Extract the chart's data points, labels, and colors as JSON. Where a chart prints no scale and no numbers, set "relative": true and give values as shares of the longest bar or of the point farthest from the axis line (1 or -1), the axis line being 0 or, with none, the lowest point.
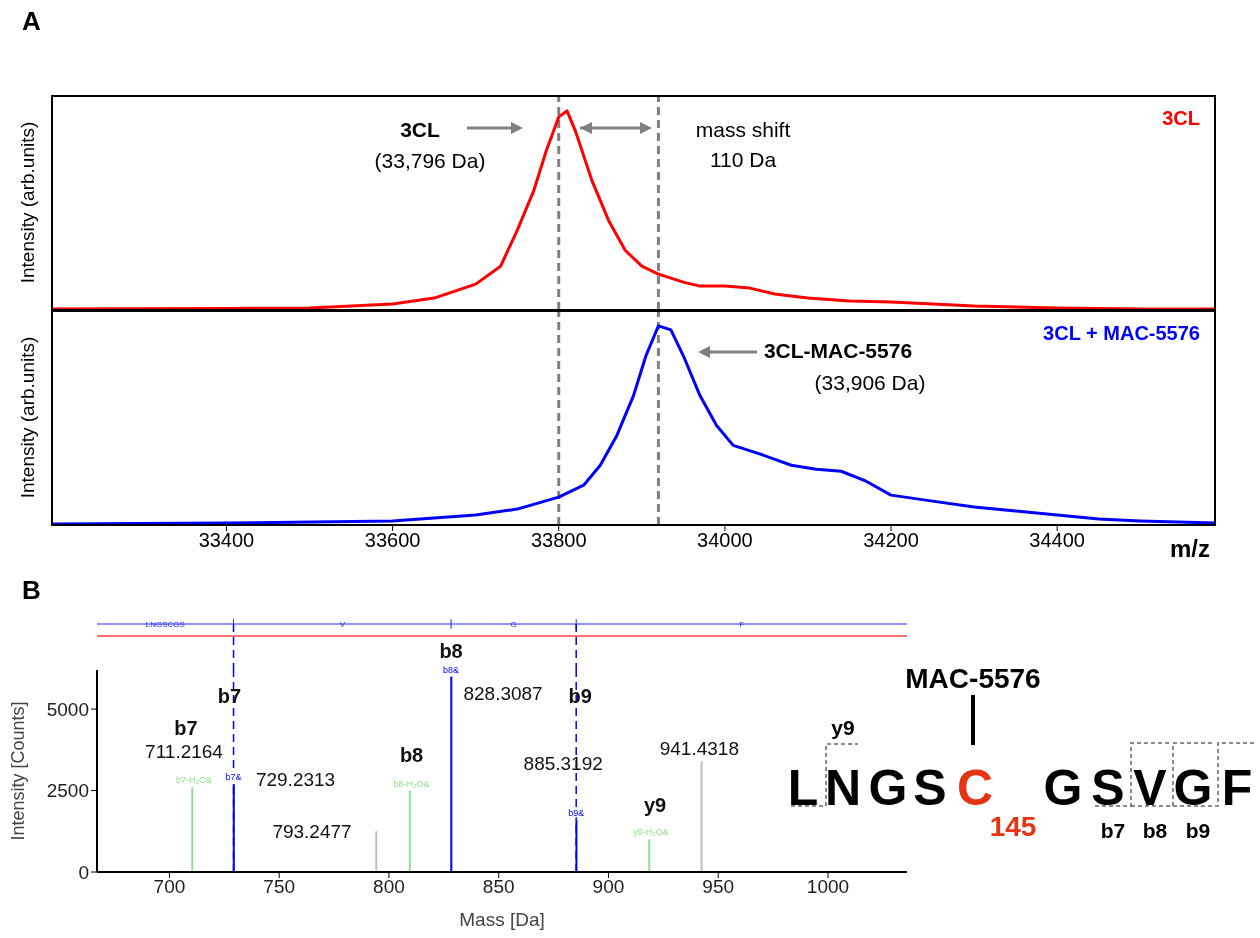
{
  "chart_data": [
    {
      "type": "line",
      "title": "A",
      "ylabel": "Intensity (arb.units)",
      "relative": true,
      "xlim": [
        33190,
        34590
      ],
      "tick_labels": false,
      "legend": "top right",
      "series": [
        {
          "name": "3CL",
          "color": "#ff0000",
          "x": [
            33190,
            33400,
            33500,
            33600,
            33650,
            33700,
            33730,
            33750,
            33770,
            33785,
            33800,
            33810,
            33820,
            33840,
            33860,
            33880,
            33900,
            33920,
            33950,
            33970,
            34000,
            34030,
            34060,
            34100,
            34150,
            34200,
            34250,
            34300,
            34400,
            34500,
            34590
          ],
          "values": [
            0.005,
            0.008,
            0.01,
            0.03,
            0.06,
            0.13,
            0.22,
            0.4,
            0.6,
            0.8,
            0.97,
            1,
            0.9,
            0.65,
            0.45,
            0.3,
            0.22,
            0.18,
            0.14,
            0.12,
            0.12,
            0.11,
            0.08,
            0.06,
            0.045,
            0.04,
            0.03,
            0.02,
            0.01,
            0.005,
            0.005
          ]
        }
      ],
      "ref_lines": [
        {
          "axis": "x",
          "value": 33800,
          "color": "#808080",
          "line_style": "dashed"
        },
        {
          "axis": "x",
          "value": 33920,
          "color": "#808080",
          "line_style": "dashed"
        }
      ],
      "annotations": [
        "3CL",
        "(33,796 Da)",
        "mass shift",
        "110 Da"
      ]
    },
    {
      "type": "line",
      "ylabel": "Intensity (arb.units)",
      "xlabel": "m/z",
      "relative": true,
      "xlim": [
        33190,
        34590
      ],
      "xticks": [
        33400,
        33600,
        33800,
        34000,
        34200,
        34400
      ],
      "legend": "top right",
      "series": [
        {
          "name": "3CL + MAC-5576",
          "color": "#0000ff",
          "x": [
            33190,
            33400,
            33600,
            33700,
            33750,
            33800,
            33830,
            33850,
            33870,
            33890,
            33905,
            33920,
            33935,
            33950,
            33970,
            33990,
            34010,
            34040,
            34080,
            34110,
            34140,
            34170,
            34200,
            34250,
            34300,
            34350,
            34400,
            34450,
            34500,
            34590
          ],
          "values": [
            0.005,
            0.01,
            0.02,
            0.05,
            0.08,
            0.14,
            0.2,
            0.3,
            0.45,
            0.65,
            0.85,
            1,
            0.98,
            0.85,
            0.65,
            0.5,
            0.4,
            0.36,
            0.3,
            0.28,
            0.27,
            0.22,
            0.15,
            0.12,
            0.09,
            0.07,
            0.05,
            0.03,
            0.02,
            0.01
          ]
        }
      ],
      "ref_lines": [
        {
          "axis": "x",
          "value": 33800,
          "color": "#808080",
          "line_style": "dashed"
        },
        {
          "axis": "x",
          "value": 33920,
          "color": "#808080",
          "line_style": "dashed"
        }
      ],
      "annotations": [
        "3CL-MAC-5576",
        "(33,906 Da)"
      ]
    },
    {
      "type": "bar",
      "title": "B",
      "xlabel": "Mass [Da]",
      "ylabel": "Intensity [Counts]",
      "xlim": [
        667,
        1036
      ],
      "xticks": [
        700,
        750,
        800,
        850,
        900,
        950,
        1000
      ],
      "ylim": [
        0,
        6200
      ],
      "yticks": [
        0,
        2500,
        5000
      ],
      "series": [
        {
          "color": "#90e090",
          "x": [
            711.2,
            810.3,
            919.4
          ],
          "values": [
            2600,
            2500,
            1000
          ],
          "value_labels": [
            "b7-H₂O&",
            "b8-H₂O&",
            "y9-H₂O&"
          ]
        },
        {
          "color": "#0000ff",
          "x": [
            729.2,
            828.3,
            885.3
          ],
          "values": [
            2700,
            6000,
            1600
          ],
          "value_labels": [
            "b7&",
            "b8&",
            "b9&"
          ]
        },
        {
          "color": "#c0c0c0",
          "x": [
            793.2,
            941.4
          ],
          "values": [
            1250,
            3400
          ]
        }
      ],
      "ref_lines": [
        {
          "axis": "x",
          "value": 729.2,
          "color": "#0000ff",
          "line_style": "dashed"
        },
        {
          "axis": "x",
          "value": 885.3,
          "color": "#0000ff",
          "line_style": "dashed"
        }
      ],
      "annotations": [
        "LNGSCGS",
        "V",
        "G",
        "F",
        {
          "text": "b7",
          "x": 711.2,
          "y": 2600
        },
        {
          "text": "711.2164",
          "x": 711.2,
          "y": 2600
        },
        {
          "text": "b7",
          "x": 729.2,
          "y": 5400
        },
        {
          "text": "729.2313",
          "x": 729.2,
          "y": 2700
        },
        {
          "text": "793.2477",
          "x": 793.2,
          "y": 1250
        },
        {
          "text": "b8",
          "x": 810.3,
          "y": 2500
        },
        {
          "text": "b8",
          "x": 828.3,
          "y": 6000
        },
        {
          "text": "828.3087",
          "x": 828.3,
          "y": 6000
        },
        {
          "text": "b9",
          "x": 885.3,
          "y": 5400
        },
        {
          "text": "885.3192",
          "x": 885.3,
          "y": 1600
        },
        {
          "text": "y9",
          "x": 919.4,
          "y": 1000
        },
        {
          "text": "941.4318",
          "x": 941.4,
          "y": 3400
        }
      ]
    },
    {
      "type": "other",
      "annotations": [
        "MAC-5576",
        "y9",
        "L",
        "N",
        "G",
        "S",
        "C",
        "145",
        "G",
        "S",
        "V",
        "G",
        "F",
        "b7",
        "b8",
        "b9"
      ]
    }
  ]
}
